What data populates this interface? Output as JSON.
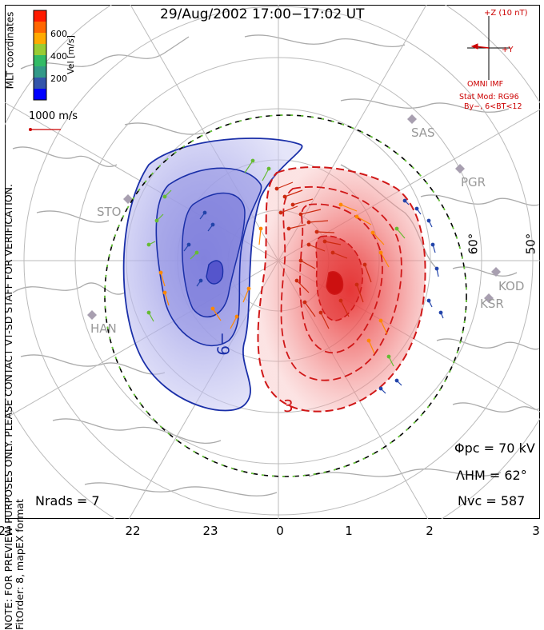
{
  "title": "29/Aug/2002 17:00−17:02 UT",
  "side_note": {
    "line1": "NOTE: FOR PREVIEW PURPOSES ONLY. PLEASE CONTACT VT-SD STAFF FOR VERIFICATION.",
    "line2": "FitOrder: 8, mapEX format"
  },
  "coords_label": "MLT coordinates",
  "colorbar": {
    "label": "Vel [m/s]",
    "ticks": [
      "600",
      "400",
      "200"
    ],
    "colors": [
      "#ff1a00",
      "#ff6600",
      "#ffaa00",
      "#99cc33",
      "#33bb66",
      "#339988",
      "#3355aa",
      "#0000ff"
    ]
  },
  "scale_vector": "1000 m/s",
  "imf": {
    "z_label": "+Z (10 nT)",
    "y_label": "+Y",
    "source": "OMNI IMF",
    "model": "Stat Mod: RG96",
    "condition": "By−, 6<BT<12",
    "color": "#cc0000"
  },
  "stations": [
    "SAS",
    "PGR",
    "STO",
    "KOD",
    "KSR",
    "HAN"
  ],
  "latitude_labels": [
    "60°",
    "50°"
  ],
  "contour_labels": {
    "negative": "−9",
    "positive": "3"
  },
  "stats": {
    "phi_pc": "Φpc = 70 kV",
    "lambda_hm": "ΛHM = 62°",
    "n_vc": "Nvc = 587",
    "n_rads": "Nrads = 7"
  },
  "mlt_axis": [
    "21",
    "22",
    "23",
    "0",
    "1",
    "2",
    "3"
  ],
  "colors": {
    "dusk_cell": "#1a2fa8",
    "dawn_cell": "#d01818",
    "hmb": "#66cc33"
  }
}
